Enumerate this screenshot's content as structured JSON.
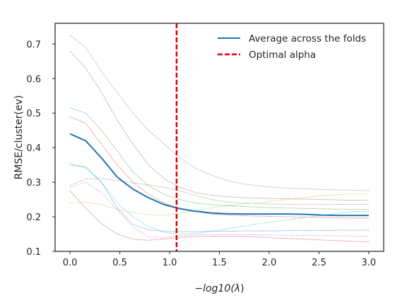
{
  "chart_data": {
    "type": "line",
    "xlabel_main": "−log10(",
    "xlabel_lambda": "λ",
    "xlabel_close": ")",
    "ylabel": "RMSE/cluster(ev)",
    "xlim": [
      -0.15,
      3.15
    ],
    "ylim": [
      0.1,
      0.76
    ],
    "x_ticks": [
      0.0,
      0.5,
      1.0,
      1.5,
      2.0,
      2.5,
      3.0
    ],
    "x_tick_labels": [
      "0.0",
      "0.5",
      "1.0",
      "1.5",
      "2.0",
      "2.5",
      "3.0"
    ],
    "y_ticks": [
      0.1,
      0.2,
      0.3,
      0.4,
      0.5,
      0.6,
      0.7
    ],
    "y_tick_labels": [
      "0.1",
      "0.2",
      "0.3",
      "0.4",
      "0.5",
      "0.6",
      "0.7"
    ],
    "grid": false,
    "legend_position": "top-right",
    "optimal_alpha": 1.07,
    "average": {
      "name": "Average across the folds",
      "color": "#1f77b4",
      "x": [
        0.0,
        0.158,
        0.316,
        0.474,
        0.632,
        0.789,
        0.947,
        1.105,
        1.263,
        1.421,
        1.579,
        1.737,
        1.895,
        2.053,
        2.211,
        2.368,
        2.526,
        2.684,
        2.842,
        3.0
      ],
      "y": [
        0.44,
        0.42,
        0.37,
        0.315,
        0.28,
        0.255,
        0.235,
        0.223,
        0.216,
        0.211,
        0.209,
        0.208,
        0.208,
        0.208,
        0.208,
        0.207,
        0.205,
        0.204,
        0.204,
        0.204
      ]
    },
    "optimal_line": {
      "name": "Optimal alpha",
      "color": "#e00000"
    },
    "folds": [
      {
        "color": "#9467bd",
        "x": [
          0.0,
          0.158,
          0.316,
          0.474,
          0.632,
          0.789,
          0.947,
          1.105,
          1.263,
          1.421,
          1.579,
          1.737,
          1.895,
          2.053,
          2.211,
          2.368,
          2.526,
          2.684,
          2.842,
          3.0
        ],
        "y": [
          0.725,
          0.69,
          0.62,
          0.56,
          0.5,
          0.45,
          0.41,
          0.37,
          0.34,
          0.32,
          0.305,
          0.295,
          0.29,
          0.285,
          0.283,
          0.281,
          0.279,
          0.278,
          0.277,
          0.276
        ]
      },
      {
        "color": "#8c564b",
        "x": [
          0.0,
          0.158,
          0.316,
          0.474,
          0.632,
          0.789,
          0.947,
          1.105,
          1.263,
          1.421,
          1.579,
          1.737,
          1.895,
          2.053,
          2.211,
          2.368,
          2.526,
          2.684,
          2.842,
          3.0
        ],
        "y": [
          0.68,
          0.63,
          0.56,
          0.48,
          0.41,
          0.35,
          0.31,
          0.285,
          0.27,
          0.262,
          0.258,
          0.255,
          0.254,
          0.253,
          0.252,
          0.251,
          0.25,
          0.249,
          0.248,
          0.248
        ]
      },
      {
        "color": "#2ca02c",
        "x": [
          0.0,
          0.158,
          0.316,
          0.474,
          0.632,
          0.789,
          0.947,
          1.105,
          1.263,
          1.421,
          1.579,
          1.737,
          1.895,
          2.053,
          2.211,
          2.368,
          2.526,
          2.684,
          2.842,
          3.0
        ],
        "y": [
          0.515,
          0.5,
          0.45,
          0.39,
          0.33,
          0.29,
          0.265,
          0.25,
          0.24,
          0.235,
          0.232,
          0.23,
          0.228,
          0.226,
          0.225,
          0.224,
          0.223,
          0.222,
          0.222,
          0.222
        ]
      },
      {
        "color": "#d62728",
        "x": [
          0.0,
          0.158,
          0.316,
          0.474,
          0.632,
          0.789,
          0.947,
          1.105,
          1.263,
          1.421,
          1.579,
          1.737,
          1.895,
          2.053,
          2.211,
          2.368,
          2.526,
          2.684,
          2.842,
          3.0
        ],
        "y": [
          0.49,
          0.47,
          0.41,
          0.35,
          0.3,
          0.265,
          0.24,
          0.225,
          0.215,
          0.208,
          0.205,
          0.203,
          0.202,
          0.201,
          0.2,
          0.199,
          0.198,
          0.197,
          0.196,
          0.196
        ]
      },
      {
        "color": "#7f7f7f",
        "x": [
          0.0,
          0.158,
          0.316,
          0.474,
          0.632,
          0.789,
          0.947,
          1.105,
          1.263,
          1.421,
          1.579,
          1.737,
          1.895,
          2.053,
          2.211,
          2.368,
          2.526,
          2.684,
          2.842,
          3.0
        ],
        "y": [
          0.29,
          0.31,
          0.31,
          0.305,
          0.298,
          0.292,
          0.285,
          0.275,
          0.262,
          0.25,
          0.243,
          0.24,
          0.238,
          0.237,
          0.236,
          0.236,
          0.236,
          0.236,
          0.236,
          0.236
        ]
      },
      {
        "color": "#bcbd22",
        "x": [
          0.0,
          0.158,
          0.316,
          0.474,
          0.632,
          0.789,
          0.947,
          1.105,
          1.263,
          1.421,
          1.579,
          1.737,
          1.895,
          2.053,
          2.211,
          2.368,
          2.526,
          2.684,
          2.842,
          3.0
        ],
        "y": [
          0.24,
          0.242,
          0.235,
          0.222,
          0.212,
          0.206,
          0.205,
          0.21,
          0.218,
          0.226,
          0.232,
          0.237,
          0.241,
          0.246,
          0.251,
          0.256,
          0.261,
          0.264,
          0.266,
          0.266
        ]
      },
      {
        "color": "#17becf",
        "x": [
          0.0,
          0.158,
          0.316,
          0.474,
          0.632,
          0.789,
          0.947,
          1.105,
          1.263,
          1.421,
          1.579,
          1.737,
          1.895,
          2.053,
          2.211,
          2.368,
          2.526,
          2.684,
          2.842,
          3.0
        ],
        "y": [
          0.355,
          0.34,
          0.3,
          0.24,
          0.2,
          0.172,
          0.155,
          0.15,
          0.152,
          0.158,
          0.165,
          0.173,
          0.18,
          0.186,
          0.192,
          0.198,
          0.204,
          0.21,
          0.215,
          0.216
        ]
      },
      {
        "color": "#1f77b4",
        "x": [
          0.0,
          0.158,
          0.316,
          0.474,
          0.632,
          0.789,
          0.947,
          1.105,
          1.263,
          1.421,
          1.579,
          1.737,
          1.895,
          2.053,
          2.211,
          2.368,
          2.526,
          2.684,
          2.842,
          3.0
        ],
        "y": [
          0.35,
          0.345,
          0.3,
          0.225,
          0.178,
          0.162,
          0.158,
          0.157,
          0.157,
          0.158,
          0.158,
          0.159,
          0.159,
          0.159,
          0.16,
          0.16,
          0.16,
          0.161,
          0.161,
          0.161
        ]
      },
      {
        "color": "#e377c2",
        "x": [
          0.0,
          0.158,
          0.316,
          0.474,
          0.632,
          0.789,
          0.947,
          1.105,
          1.263,
          1.421,
          1.579,
          1.737,
          1.895,
          2.053,
          2.211,
          2.368,
          2.526,
          2.684,
          2.842,
          3.0
        ],
        "y": [
          0.285,
          0.3,
          0.27,
          0.22,
          0.17,
          0.142,
          0.14,
          0.145,
          0.148,
          0.149,
          0.149,
          0.148,
          0.148,
          0.147,
          0.146,
          0.146,
          0.145,
          0.145,
          0.144,
          0.144
        ]
      },
      {
        "color": "#d62728",
        "x": [
          0.0,
          0.158,
          0.316,
          0.474,
          0.632,
          0.789,
          0.947,
          1.105,
          1.263,
          1.421,
          1.579,
          1.737,
          1.895,
          2.053,
          2.211,
          2.368,
          2.526,
          2.684,
          2.842,
          3.0
        ],
        "y": [
          0.275,
          0.225,
          0.18,
          0.15,
          0.135,
          0.132,
          0.136,
          0.14,
          0.143,
          0.144,
          0.144,
          0.143,
          0.141,
          0.139,
          0.137,
          0.135,
          0.133,
          0.131,
          0.129,
          0.128
        ]
      }
    ]
  }
}
